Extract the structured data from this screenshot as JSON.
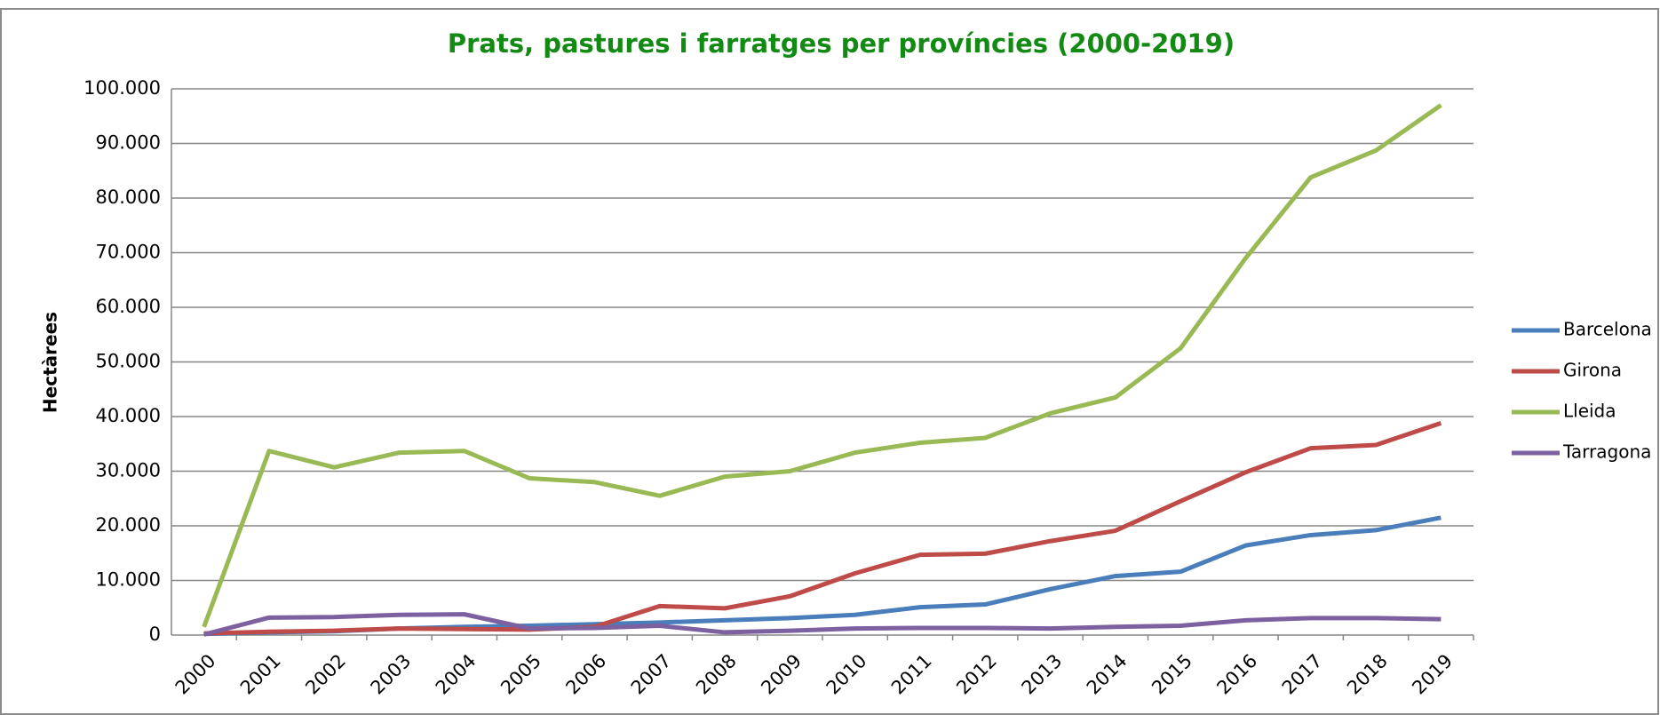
{
  "chart_data": {
    "type": "line",
    "title": "Prats, pastures i farratges per províncies (2000-2019)",
    "y_label": "Hectàrees",
    "categories": [
      "2000",
      "2001",
      "2002",
      "2003",
      "2004",
      "2005",
      "2006",
      "2007",
      "2008",
      "2009",
      "2010",
      "2011",
      "2012",
      "2013",
      "2014",
      "2015",
      "2016",
      "2017",
      "2018",
      "2019"
    ],
    "series": [
      {
        "name": "Barcelona",
        "color": "#4a7ebb",
        "values": [
          200,
          500,
          700,
          1200,
          1500,
          1700,
          2000,
          2300,
          2700,
          3100,
          3700,
          5100,
          5600,
          8400,
          10800,
          11600,
          16400,
          18300,
          19200,
          21500
        ]
      },
      {
        "name": "Girona",
        "color": "#be4b48",
        "values": [
          300,
          600,
          800,
          1200,
          1100,
          1000,
          1500,
          5300,
          4900,
          7100,
          11300,
          14700,
          14900,
          17200,
          19100,
          24500,
          29800,
          34200,
          34800,
          38800
        ]
      },
      {
        "name": "Lleida",
        "color": "#98b954",
        "values": [
          1500,
          33700,
          30700,
          33400,
          33700,
          28700,
          28000,
          25500,
          29000,
          30000,
          33400,
          35200,
          36100,
          40600,
          43500,
          52500,
          69000,
          83800,
          88700,
          97000
        ]
      },
      {
        "name": "Tarragona",
        "color": "#7d60a0",
        "values": [
          100,
          3200,
          3300,
          3700,
          3800,
          1200,
          1300,
          1700,
          500,
          800,
          1200,
          1300,
          1300,
          1200,
          1500,
          1700,
          2700,
          3100,
          3100,
          2900
        ]
      }
    ],
    "ylim": [
      0,
      100000
    ],
    "yticks": [
      0,
      {
        "value": 10000,
        "label": "10.000"
      },
      {
        "value": 20000,
        "label": "20.000"
      },
      {
        "value": 30000,
        "label": "30.000"
      },
      {
        "value": 40000,
        "label": "40.000"
      },
      {
        "value": 50000,
        "label": "50.000"
      },
      {
        "value": 60000,
        "label": "60.000"
      },
      {
        "value": 70000,
        "label": "70.000"
      },
      {
        "value": 80000,
        "label": "80.000"
      },
      {
        "value": 90000,
        "label": "90.000"
      },
      {
        "value": 100000,
        "label": "100.000"
      }
    ],
    "grid": true,
    "legend": "right"
  }
}
